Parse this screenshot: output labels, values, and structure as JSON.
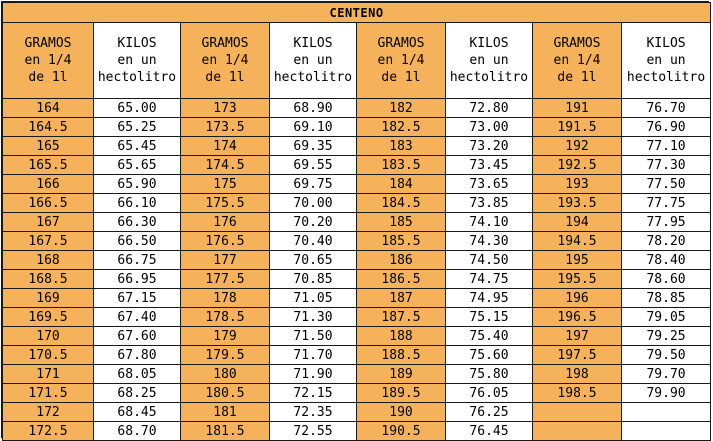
{
  "title": "CENTENO",
  "headers": [
    {
      "gramos": [
        "GRAMOS",
        "en 1/4",
        "de 1l"
      ],
      "kilos": [
        "KILOS",
        "en un",
        "hectolitro"
      ]
    },
    {
      "gramos": [
        "GRAMOS",
        "en 1/4",
        "de 1l"
      ],
      "kilos": [
        "KILOS",
        "en un",
        "hectolitro"
      ]
    },
    {
      "gramos": [
        "GRAMOS",
        "en 1/4",
        "de 1l"
      ],
      "kilos": [
        "KILOS",
        "en un",
        "hectolitro"
      ]
    },
    {
      "gramos": [
        "GRAMOS",
        "en 1/4",
        "de 1l"
      ],
      "kilos": [
        "KILOS",
        "en un",
        "hectolitro"
      ]
    }
  ],
  "rows": [
    [
      "164",
      "65.00",
      "173",
      "68.90",
      "182",
      "72.80",
      "191",
      "76.70"
    ],
    [
      "164.5",
      "65.25",
      "173.5",
      "69.10",
      "182.5",
      "73.00",
      "191.5",
      "76.90"
    ],
    [
      "165",
      "65.45",
      "174",
      "69.35",
      "183",
      "73.20",
      "192",
      "77.10"
    ],
    [
      "165.5",
      "65.65",
      "174.5",
      "69.55",
      "183.5",
      "73.45",
      "192.5",
      "77.30"
    ],
    [
      "166",
      "65.90",
      "175",
      "69.75",
      "184",
      "73.65",
      "193",
      "77.50"
    ],
    [
      "166.5",
      "66.10",
      "175.5",
      "70.00",
      "184.5",
      "73.85",
      "193.5",
      "77.75"
    ],
    [
      "167",
      "66.30",
      "176",
      "70.20",
      "185",
      "74.10",
      "194",
      "77.95"
    ],
    [
      "167.5",
      "66.50",
      "176.5",
      "70.40",
      "185.5",
      "74.30",
      "194.5",
      "78.20"
    ],
    [
      "168",
      "66.75",
      "177",
      "70.65",
      "186",
      "74.50",
      "195",
      "78.40"
    ],
    [
      "168.5",
      "66.95",
      "177.5",
      "70.85",
      "186.5",
      "74.75",
      "195.5",
      "78.60"
    ],
    [
      "169",
      "67.15",
      "178",
      "71.05",
      "187",
      "74.95",
      "196",
      "78.85"
    ],
    [
      "169.5",
      "67.40",
      "178.5",
      "71.30",
      "187.5",
      "75.15",
      "196.5",
      "79.05"
    ],
    [
      "170",
      "67.60",
      "179",
      "71.50",
      "188",
      "75.40",
      "197",
      "79.25"
    ],
    [
      "170.5",
      "67.80",
      "179.5",
      "71.70",
      "188.5",
      "75.60",
      "197.5",
      "79.50"
    ],
    [
      "171",
      "68.05",
      "180",
      "71.90",
      "189",
      "75.80",
      "198",
      "79.70"
    ],
    [
      "171.5",
      "68.25",
      "180.5",
      "72.15",
      "189.5",
      "76.05",
      "198.5",
      "79.90"
    ],
    [
      "172",
      "68.45",
      "181",
      "72.35",
      "190",
      "76.25",
      "",
      ""
    ],
    [
      "172.5",
      "68.70",
      "181.5",
      "72.55",
      "190.5",
      "76.45",
      "",
      ""
    ]
  ],
  "colors": {
    "gramos_fill": "#f5b25a",
    "kilos_fill": "#ffffff",
    "grid": "#1a1a1a"
  }
}
